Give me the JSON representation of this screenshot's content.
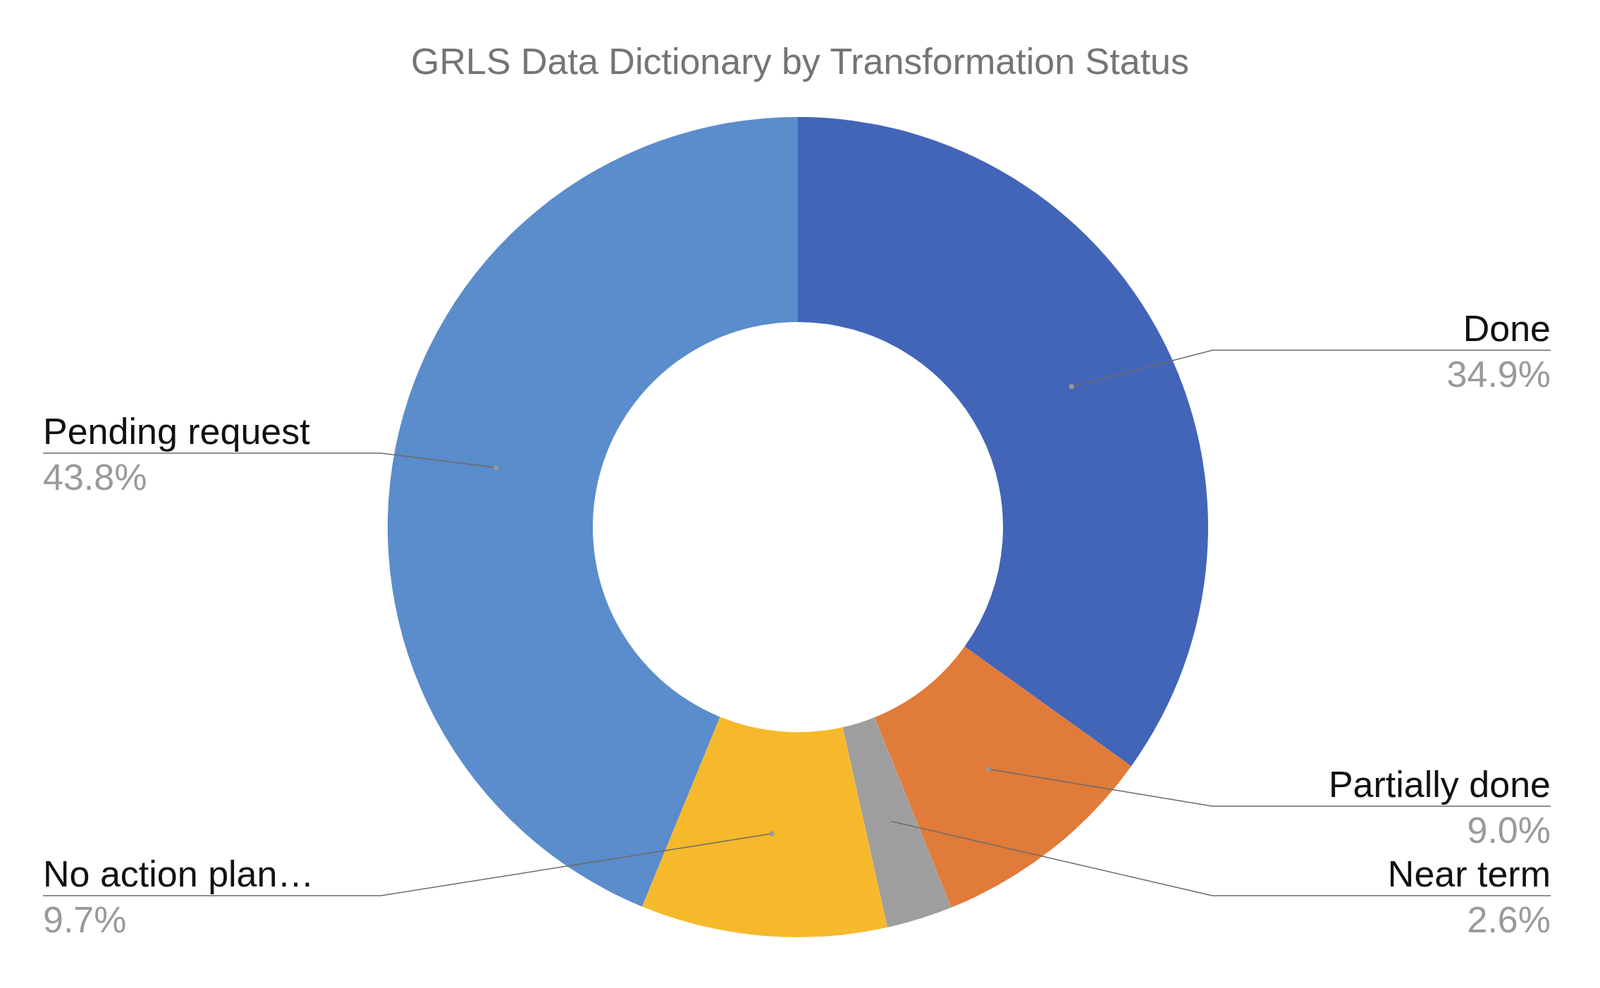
{
  "chart_data": {
    "type": "donut",
    "title": "GRLS Data Dictionary by Transformation Status",
    "categories": [
      "Done",
      "Partially done",
      "Near term",
      "No action plan…",
      "Pending request"
    ],
    "values": [
      34.9,
      9.0,
      2.6,
      9.7,
      43.8
    ],
    "value_labels": [
      "34.9%",
      "9.0%",
      "2.6%",
      "9.7%",
      "43.8%"
    ],
    "colors": [
      "#4265b8",
      "#e07b39",
      "#9e9e9e",
      "#f6b92b",
      "#5b8ccb"
    ],
    "data_labels": true
  }
}
